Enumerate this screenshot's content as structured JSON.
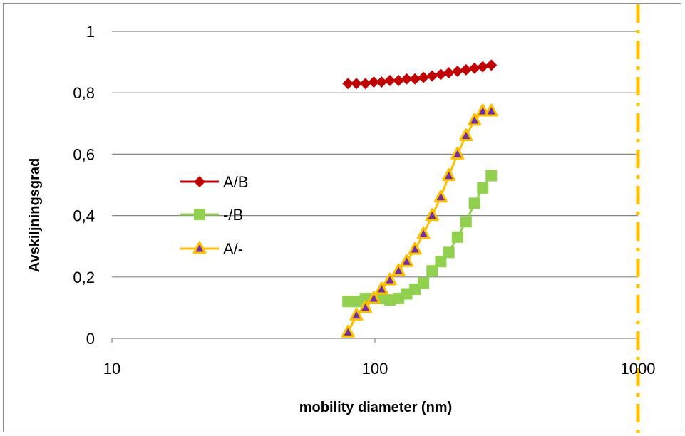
{
  "chart_data": {
    "type": "scatter",
    "xlabel": "mobility diameter (nm)",
    "ylabel": "Avskiljningsgrad",
    "x_scale": "log",
    "xlim": [
      10,
      1000
    ],
    "ylim": [
      0,
      1
    ],
    "x_ticks": [
      10,
      100,
      1000
    ],
    "x_tick_labels": [
      "10",
      "100",
      "1000"
    ],
    "y_ticks": [
      0,
      0.2,
      0.4,
      0.6,
      0.8,
      1
    ],
    "y_tick_labels": [
      "0",
      "0,2",
      "0,4",
      "0,6",
      "0,8",
      "1"
    ],
    "grid": "horizontal",
    "legend_position": "left-center",
    "reference_line": {
      "x": 1000,
      "style": "dash-dot",
      "color": "#FFC000"
    },
    "series": [
      {
        "name": "A/B",
        "marker": "diamond",
        "color": "#C00000",
        "x": [
          79,
          85,
          92,
          99,
          106,
          114,
          123,
          132,
          142,
          153,
          165,
          178,
          191,
          206,
          222,
          239,
          257,
          277
        ],
        "y": [
          0.83,
          0.83,
          0.83,
          0.835,
          0.835,
          0.84,
          0.84,
          0.845,
          0.845,
          0.85,
          0.855,
          0.86,
          0.865,
          0.87,
          0.875,
          0.88,
          0.885,
          0.89
        ]
      },
      {
        "name": "-/B",
        "marker": "square",
        "color": "#92D050",
        "x": [
          79,
          85,
          92,
          99,
          106,
          114,
          123,
          132,
          142,
          153,
          165,
          178,
          191,
          206,
          222,
          239,
          257,
          277
        ],
        "y": [
          0.12,
          0.12,
          0.13,
          0.13,
          0.13,
          0.125,
          0.13,
          0.145,
          0.16,
          0.18,
          0.22,
          0.25,
          0.28,
          0.33,
          0.38,
          0.44,
          0.49,
          0.53
        ]
      },
      {
        "name": "A/-",
        "marker": "triangle",
        "color": "#FFC000",
        "marker_fill": "#7030A0",
        "x": [
          79,
          85,
          92,
          99,
          106,
          114,
          123,
          132,
          142,
          153,
          165,
          178,
          191,
          206,
          222,
          239,
          257,
          277
        ],
        "y": [
          0.02,
          0.075,
          0.1,
          0.13,
          0.16,
          0.19,
          0.22,
          0.25,
          0.29,
          0.34,
          0.4,
          0.46,
          0.53,
          0.6,
          0.66,
          0.71,
          0.74,
          0.74
        ]
      }
    ]
  }
}
